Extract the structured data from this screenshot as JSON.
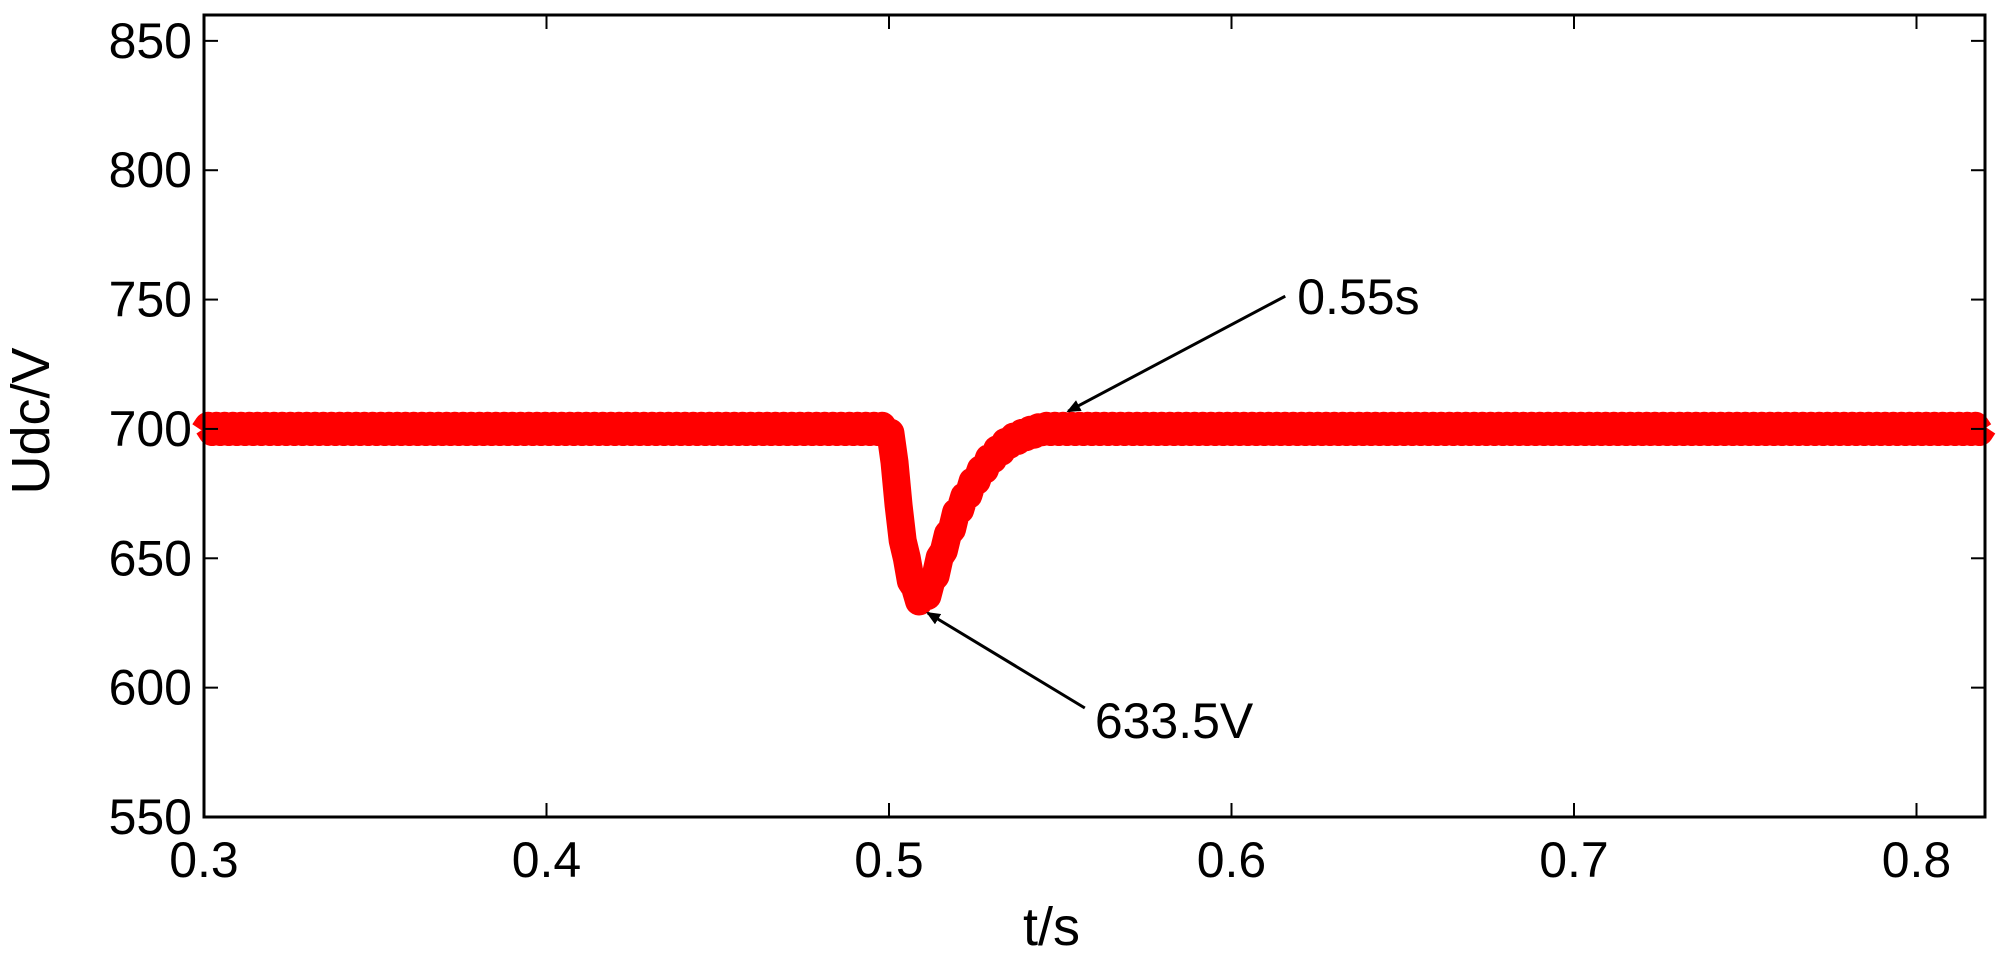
{
  "chart_data": {
    "type": "line",
    "title": "",
    "xlabel": "t/s",
    "ylabel": "Udc/V",
    "xlim": [
      0.3,
      0.82
    ],
    "ylim": [
      550,
      860
    ],
    "x_ticks": [
      "0.3",
      "0.4",
      "0.5",
      "0.6",
      "0.7",
      "0.8"
    ],
    "y_ticks": [
      "550",
      "600",
      "650",
      "700",
      "750",
      "800",
      "850"
    ],
    "grid": false,
    "legend": "none",
    "colors": {
      "line": "#ff0000",
      "axis": "#000000",
      "background": "#ffffff"
    },
    "series": [
      {
        "x": [
          0.3,
          0.35,
          0.4,
          0.45,
          0.5,
          0.5015,
          0.503,
          0.505,
          0.507,
          0.509,
          0.511,
          0.513,
          0.516,
          0.52,
          0.525,
          0.53,
          0.535,
          0.54,
          0.545,
          0.55,
          0.6,
          0.65,
          0.7,
          0.75,
          0.82
        ],
        "y": [
          700,
          700,
          700,
          700,
          700,
          690,
          666,
          650,
          639,
          634,
          636,
          642,
          654,
          668,
          680,
          689,
          695,
          698,
          700,
          700,
          700,
          700,
          700,
          700,
          700
        ]
      }
    ],
    "annotations": [
      {
        "text": "0.55s",
        "x": 0.55,
        "y": 703
      },
      {
        "text": "633.5V",
        "x": 0.509,
        "y": 633.5
      }
    ]
  }
}
